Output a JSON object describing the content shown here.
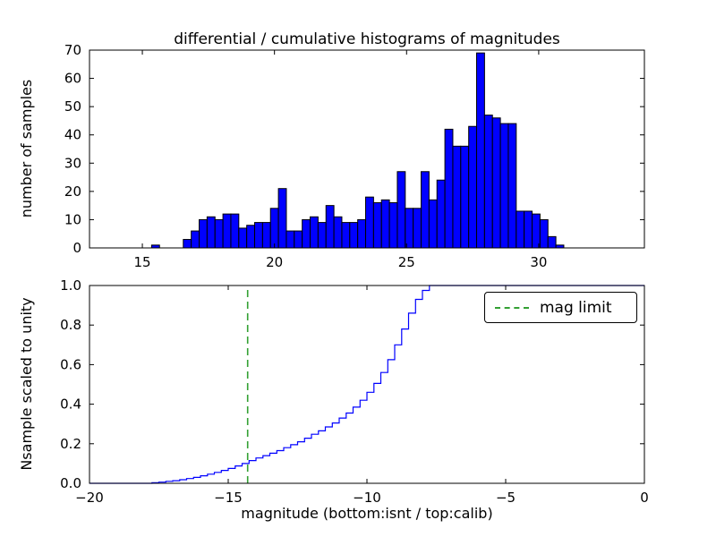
{
  "chart_data": [
    {
      "type": "bar",
      "title": "differential / cumulative histograms of magnitudes",
      "ylabel": "number of samples",
      "xlim": [
        13,
        34
      ],
      "ylim": [
        0,
        70
      ],
      "xticks": [
        15,
        20,
        25,
        30
      ],
      "xtick_labels": [
        "15",
        "20",
        "25",
        "30"
      ],
      "yticks": [
        0,
        10,
        20,
        30,
        40,
        50,
        60,
        70
      ],
      "ytick_labels": [
        "0",
        "10",
        "20",
        "30",
        "40",
        "50",
        "60",
        "70"
      ],
      "grid": false,
      "bar_color": "#0000ff",
      "bar_edge_color": "#000000",
      "bins": {
        "start": 15.35,
        "width": 0.3
      },
      "values": [
        1,
        0,
        0,
        0,
        3,
        6,
        10,
        11,
        10,
        12,
        12,
        7,
        8,
        9,
        9,
        14,
        21,
        6,
        6,
        10,
        11,
        9,
        15,
        11,
        9,
        9,
        10,
        18,
        16,
        17,
        16,
        27,
        14,
        14,
        27,
        17,
        24,
        42,
        36,
        36,
        43,
        69,
        47,
        46,
        44,
        44,
        13,
        13,
        12,
        10,
        4,
        1
      ]
    },
    {
      "type": "line",
      "ylabel": "Nsample scaled to unity",
      "xlabel": "magnitude (bottom:isnt / top:calib)",
      "xlim": [
        -20,
        0
      ],
      "ylim": [
        0.0,
        1.0
      ],
      "xticks": [
        -20,
        -15,
        -10,
        -5,
        0
      ],
      "xtick_labels": [
        "−20",
        "−15",
        "−10",
        "−5",
        "0"
      ],
      "yticks": [
        0.0,
        0.2,
        0.4,
        0.6,
        0.8,
        1.0
      ],
      "ytick_labels": [
        "0.0",
        "0.2",
        "0.4",
        "0.6",
        "0.8",
        "1.0"
      ],
      "grid": false,
      "line_color": "#0000ff",
      "step": {
        "start": -17.75,
        "width": 0.25,
        "cumulative": [
          0.003,
          0.006,
          0.01,
          0.013,
          0.018,
          0.024,
          0.03,
          0.038,
          0.046,
          0.055,
          0.065,
          0.075,
          0.088,
          0.1,
          0.115,
          0.128,
          0.14,
          0.152,
          0.165,
          0.18,
          0.195,
          0.21,
          0.228,
          0.248,
          0.265,
          0.285,
          0.305,
          0.33,
          0.355,
          0.385,
          0.42,
          0.46,
          0.505,
          0.56,
          0.625,
          0.7,
          0.78,
          0.86,
          0.93,
          0.975,
          1.0
        ]
      },
      "mag_limit": {
        "x": -14.3,
        "color": "#33a033",
        "line_style": "dashed",
        "label": "mag limit"
      },
      "legend": {
        "label": "mag limit",
        "position": "upper right"
      }
    }
  ]
}
